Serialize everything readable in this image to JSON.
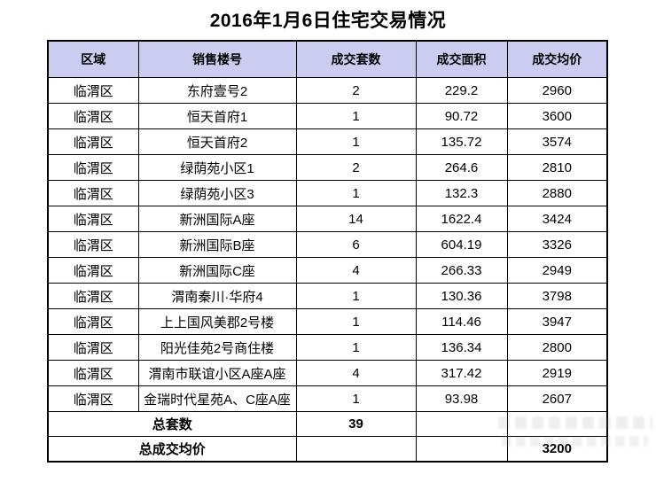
{
  "title": "2016年1月6日住宅交易情况",
  "chart_data": {
    "type": "table",
    "title": "2016年1月6日住宅交易情况",
    "columns": [
      "区域",
      "销售楼号",
      "成交套数",
      "成交面积",
      "成交均价"
    ],
    "rows": [
      [
        "临渭区",
        "东府壹号2",
        "2",
        "229.2",
        "2960"
      ],
      [
        "临渭区",
        "恒天首府1",
        "1",
        "90.72",
        "3600"
      ],
      [
        "临渭区",
        "恒天首府2",
        "1",
        "135.72",
        "3574"
      ],
      [
        "临渭区",
        "绿荫苑小区1",
        "2",
        "264.6",
        "2810"
      ],
      [
        "临渭区",
        "绿荫苑小区3",
        "1",
        "132.3",
        "2880"
      ],
      [
        "临渭区",
        "新洲国际A座",
        "14",
        "1622.4",
        "3424"
      ],
      [
        "临渭区",
        "新洲国际B座",
        "6",
        "604.19",
        "3326"
      ],
      [
        "临渭区",
        "新洲国际C座",
        "4",
        "266.33",
        "2949"
      ],
      [
        "临渭区",
        "渭南秦川·华府4",
        "1",
        "130.36",
        "3798"
      ],
      [
        "临渭区",
        "上上国风美郡2号楼",
        "1",
        "114.46",
        "3947"
      ],
      [
        "临渭区",
        "阳光佳苑2号商住楼",
        "1",
        "136.34",
        "2800"
      ],
      [
        "临渭区",
        "渭南市联谊小区A座A座",
        "4",
        "317.42",
        "2919"
      ],
      [
        "临渭区",
        "金瑞时代星苑A、C座A座",
        "1",
        "93.98",
        "2607"
      ]
    ],
    "totals": [
      {
        "label": "总套数",
        "value": "39",
        "value_column": "成交套数"
      },
      {
        "label": "总成交均价",
        "value": "3200",
        "value_column": "成交均价"
      }
    ]
  },
  "colors": {
    "header_bg": "#ccccf0",
    "border": "#000000",
    "title_text": "#000000",
    "body_text": "#000000"
  }
}
